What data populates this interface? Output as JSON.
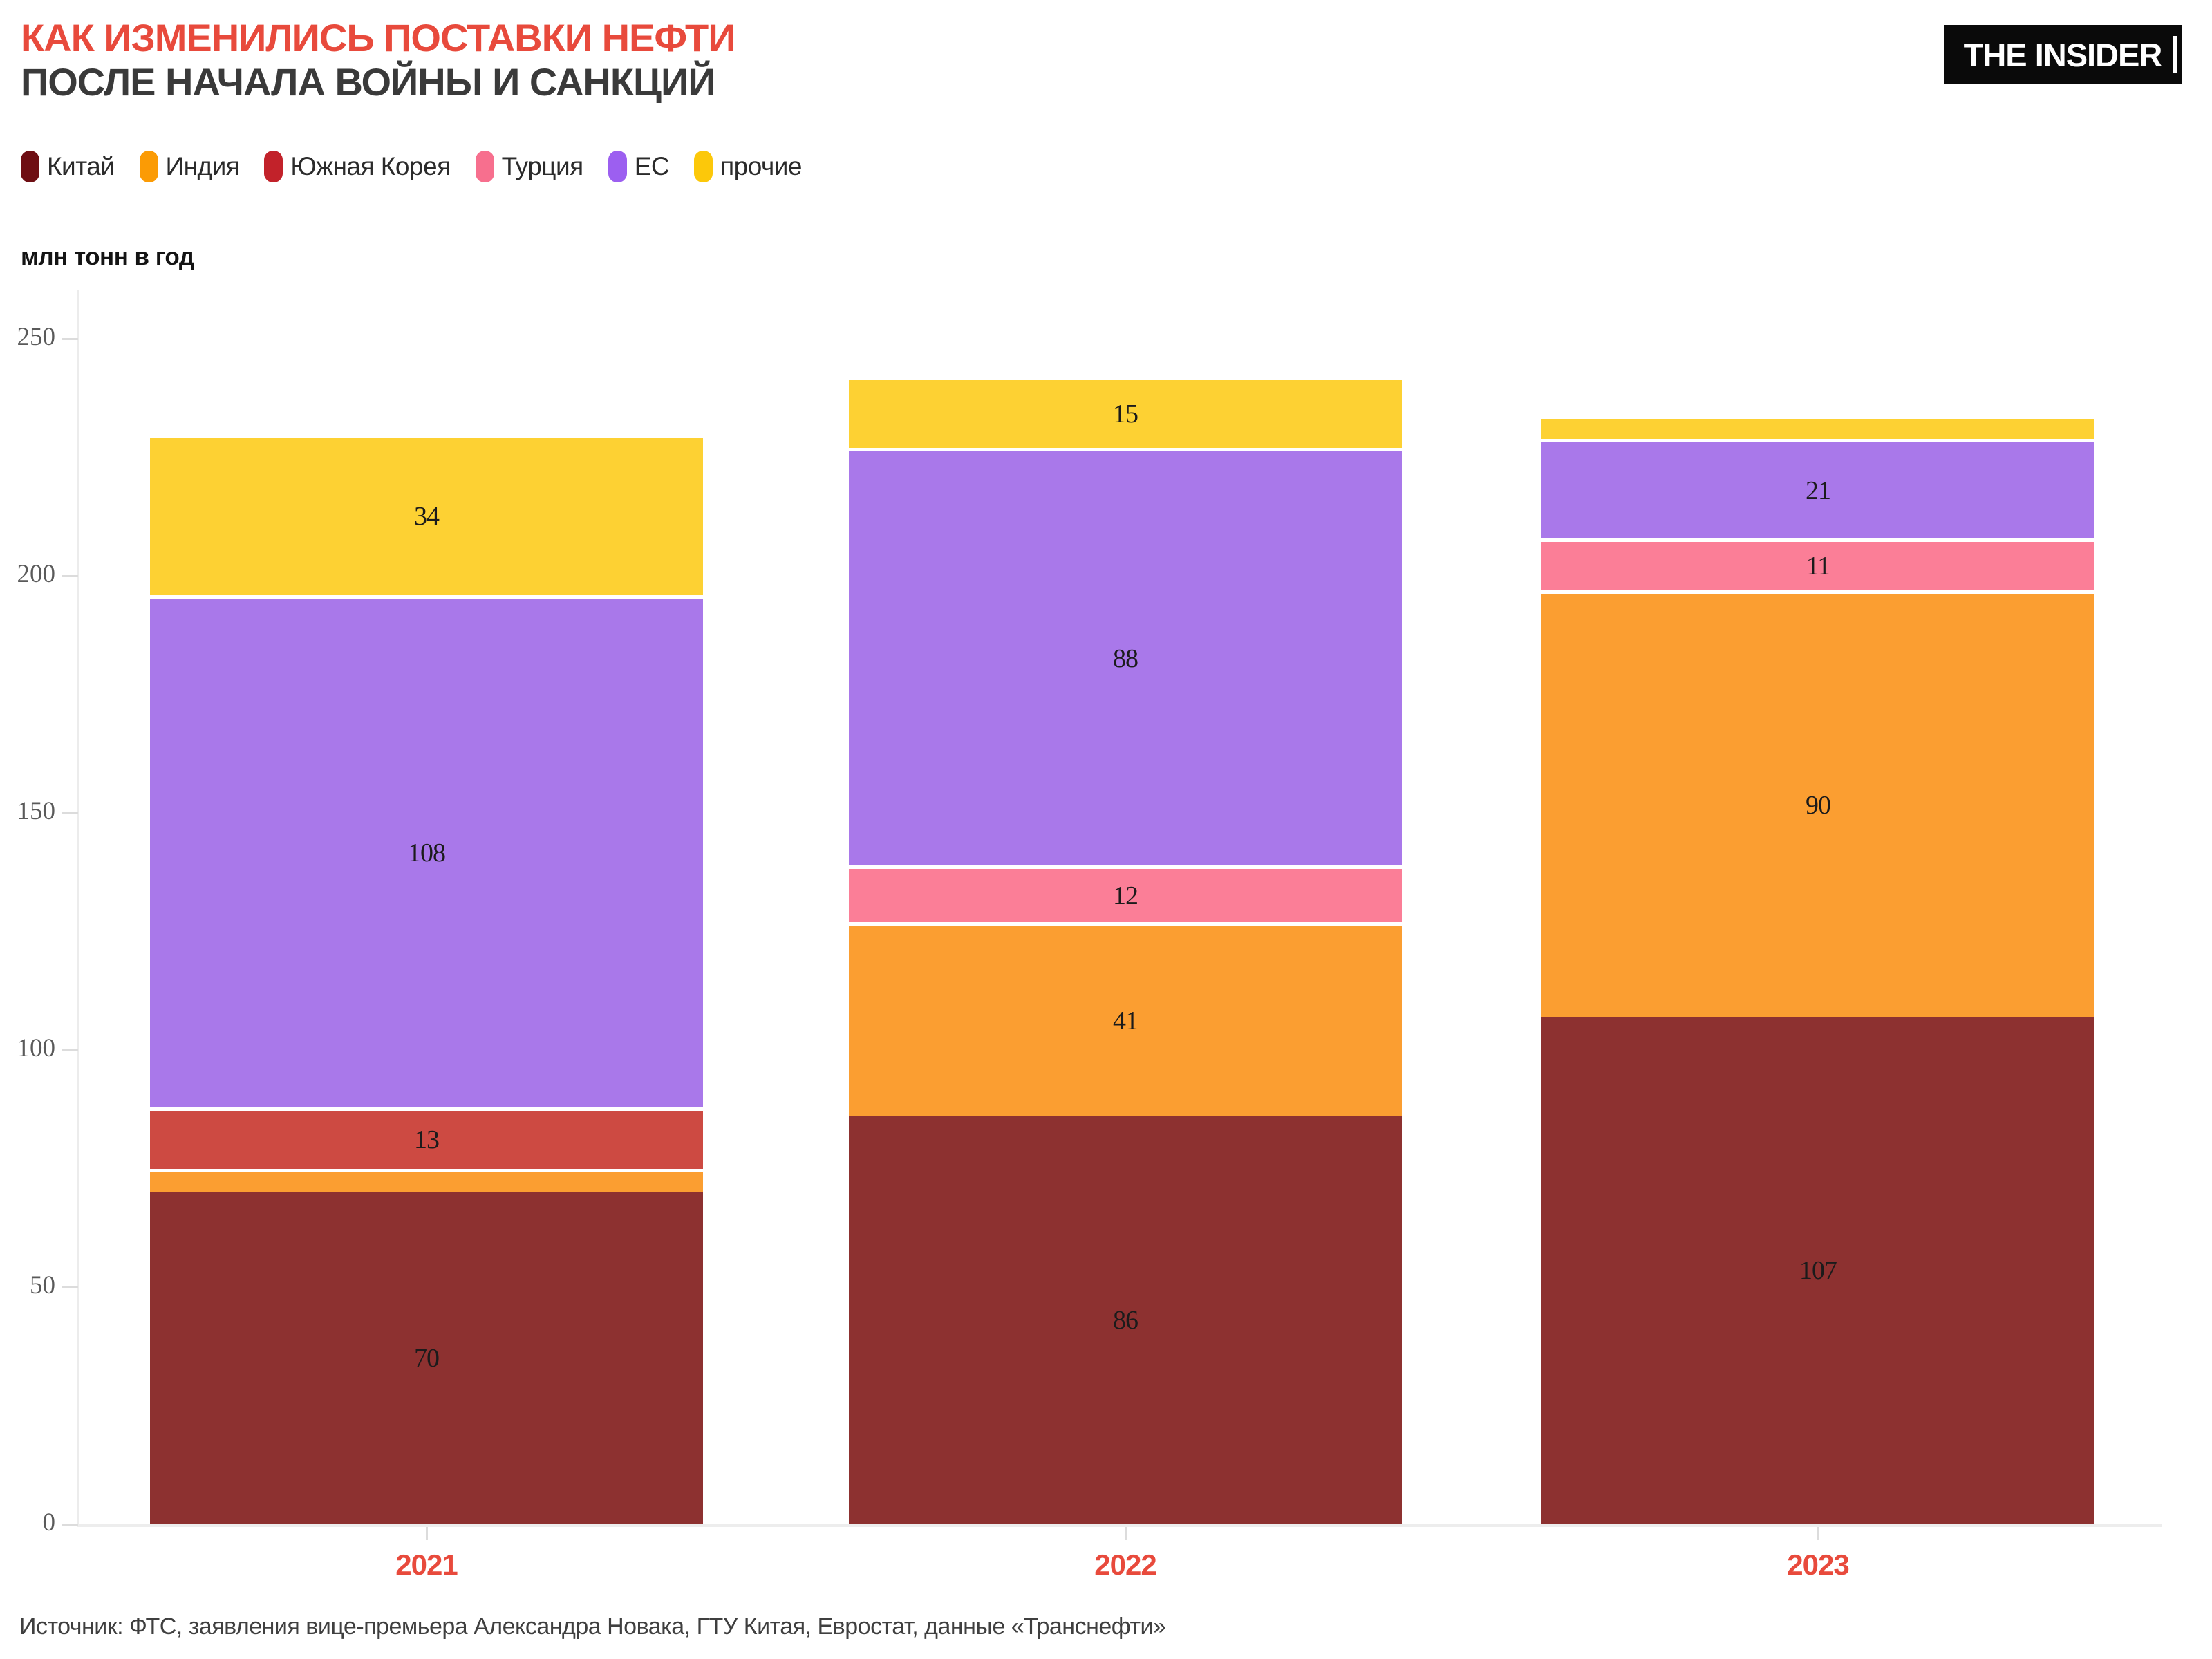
{
  "header": {
    "title_line1": "КАК ИЗМЕНИЛИСЬ ПОСТАВКИ НЕФТИ",
    "title_line2": "ПОСЛЕ НАЧАЛА ВОЙНЫ И САНКЦИЙ",
    "title_color": "#e84a3c",
    "subtitle_color": "#3a3a3a",
    "logo_text": "THE INSIDER"
  },
  "legend": {
    "items": [
      {
        "label": "Китай",
        "color": "#6e0e13"
      },
      {
        "label": "Индия",
        "color": "#fb9b05"
      },
      {
        "label": "Южная Корея",
        "color": "#c2222a"
      },
      {
        "label": "Турция",
        "color": "#f76f8e"
      },
      {
        "label": "ЕС",
        "color": "#9c5ff0"
      },
      {
        "label": "прочие",
        "color": "#fcc80a"
      }
    ]
  },
  "axis_unit_label": "млн тонн в год",
  "chart_data": {
    "type": "bar",
    "stacked": true,
    "title": "Как изменились поставки нефти после начала войны и санкций",
    "ylabel": "млн тонн в год",
    "ylim": [
      0,
      250
    ],
    "yticks": [
      0,
      50,
      100,
      150,
      200,
      250
    ],
    "grid": false,
    "legend_position": "top",
    "categories": [
      "2021",
      "2022",
      "2023"
    ],
    "series": [
      {
        "name": "Китай",
        "color": "#8d3130",
        "values": [
          70,
          86,
          107
        ],
        "labels": [
          "70",
          "86",
          "107"
        ]
      },
      {
        "name": "Индия",
        "color": "#fb9e31",
        "values": [
          5,
          41,
          90
        ],
        "labels": [
          null,
          "41",
          "90"
        ]
      },
      {
        "name": "Южная Корея",
        "color": "#cd4a42",
        "values": [
          13,
          0,
          0
        ],
        "labels": [
          "13",
          null,
          null
        ]
      },
      {
        "name": "Турция",
        "color": "#fb7e97",
        "values": [
          0,
          12,
          11
        ],
        "labels": [
          null,
          "12",
          "11"
        ]
      },
      {
        "name": "ЕС",
        "color": "#a978ea",
        "values": [
          108,
          88,
          21
        ],
        "labels": [
          "108",
          "88",
          "21"
        ]
      },
      {
        "name": "прочие",
        "color": "#fdd133",
        "values": [
          34,
          15,
          5
        ],
        "labels": [
          "34",
          "15",
          null
        ]
      }
    ],
    "totals": [
      230,
      242,
      234
    ],
    "tick_label_color": "#5a5a5a",
    "year_label_color": "#e84a3c",
    "value_label_color": "#1b1b1b"
  },
  "source_note": "Источник: ФТС, заявления вице-премьера Александра Новака, ГТУ Китая, Евростат, данные «Транснефти»"
}
